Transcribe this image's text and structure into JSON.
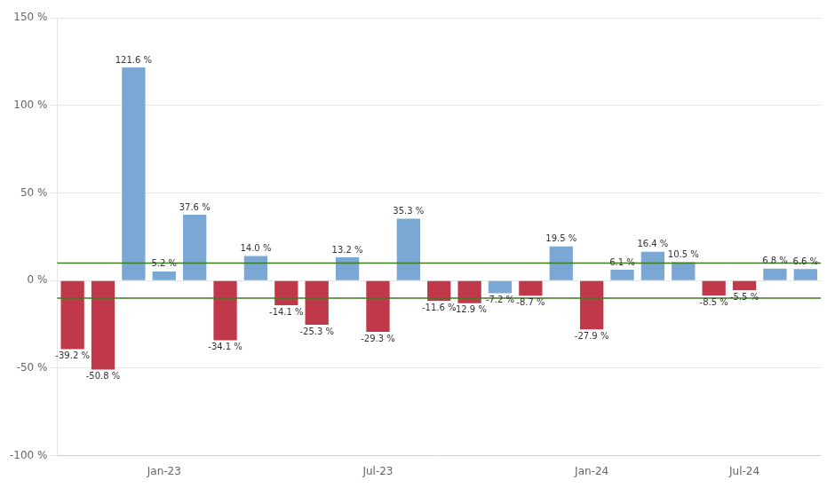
{
  "chart_data": {
    "type": "bar",
    "categories": [
      null,
      null,
      null,
      "Jan-23",
      null,
      null,
      null,
      null,
      null,
      null,
      "Jul-23",
      null,
      null,
      null,
      null,
      null,
      null,
      "Jan-24",
      null,
      null,
      null,
      null,
      "Jul-24",
      null,
      null
    ],
    "values": [
      -39.2,
      -50.8,
      121.6,
      5.2,
      37.6,
      -34.1,
      14.0,
      -14.1,
      -25.3,
      13.2,
      -29.3,
      35.3,
      -11.6,
      -12.9,
      -7.2,
      -8.7,
      19.5,
      -27.9,
      6.1,
      16.4,
      10.5,
      -8.5,
      -5.5,
      6.8,
      6.6
    ],
    "value_labels": [
      "-39.2 %",
      "-50.8 %",
      "121.6 %",
      "5.2 %",
      "37.6 %",
      "-34.1 %",
      "14.0 %",
      "-14.1 %",
      "-25.3 %",
      "13.2 %",
      "-29.3 %",
      "35.3 %",
      "-11.6 %",
      "-12.9 %",
      "-7.2 %",
      "-8.7 %",
      "19.5 %",
      "-27.9 %",
      "6.1 %",
      "16.4 %",
      "10.5 %",
      "-8.5 %",
      "-5.5 %",
      "6.8 %",
      "6.6 %"
    ],
    "data_labels": true,
    "colors": [
      "#c0394b",
      "#c0394b",
      "#7ba7d4",
      "#7ba7d4",
      "#7ba7d4",
      "#c0394b",
      "#7ba7d4",
      "#c0394b",
      "#c0394b",
      "#7ba7d4",
      "#c0394b",
      "#7ba7d4",
      "#c0394b",
      "#c0394b",
      "#7ba7d4",
      "#c0394b",
      "#7ba7d4",
      "#c0394b",
      "#7ba7d4",
      "#7ba7d4",
      "#7ba7d4",
      "#c0394b",
      "#c0394b",
      "#7ba7d4",
      "#7ba7d4"
    ],
    "ylim": [
      -100,
      150
    ],
    "yticks": [
      {
        "value": -100,
        "label": "-100 %"
      },
      {
        "value": -50,
        "label": "-50 %"
      },
      {
        "value": 0,
        "label": "0 %"
      },
      {
        "value": 50,
        "label": "50 %"
      },
      {
        "value": 100,
        "label": "100 %"
      },
      {
        "value": 150,
        "label": "150 %"
      }
    ],
    "hlines": [
      {
        "value": 10.0,
        "color": "#3a7d1e"
      },
      {
        "value": -10.0,
        "color": "#3a7d1e"
      }
    ],
    "grid": true
  }
}
